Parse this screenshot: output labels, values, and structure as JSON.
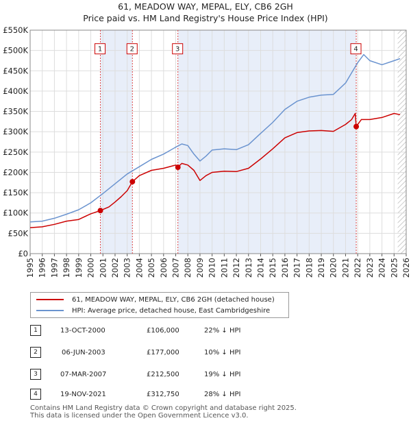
{
  "title": "61, MEADOW WAY, MEPAL, ELY, CB6 2GH",
  "subtitle": "Price paid vs. HM Land Registry's House Price Index (HPI)",
  "colors": {
    "price": "#cc0000",
    "hpi": "#6a93cf",
    "shade": "#e8eef9",
    "grid": "#dddddd"
  },
  "chart_data": {
    "type": "line",
    "xlim": [
      1995,
      2026
    ],
    "ylim": [
      0,
      550000
    ],
    "x_ticks": [
      1995,
      1996,
      1997,
      1998,
      1999,
      2000,
      2001,
      2002,
      2003,
      2004,
      2005,
      2006,
      2007,
      2008,
      2009,
      2010,
      2011,
      2012,
      2013,
      2014,
      2015,
      2016,
      2017,
      2018,
      2019,
      2020,
      2021,
      2022,
      2023,
      2024,
      2025,
      2026
    ],
    "y_ticks": [
      0,
      50000,
      100000,
      150000,
      200000,
      250000,
      300000,
      350000,
      400000,
      450000,
      500000,
      550000
    ],
    "y_tick_labels": [
      "£0",
      "£50K",
      "£100K",
      "£150K",
      "£200K",
      "£250K",
      "£300K",
      "£350K",
      "£400K",
      "£450K",
      "£500K",
      "£550K"
    ],
    "series": [
      {
        "name": "61, MEADOW WAY, MEPAL, ELY, CB6 2GH (detached house)",
        "x": [
          1995.0,
          1996.0,
          1997.0,
          1998.0,
          1999.0,
          2000.0,
          2000.79,
          2001.5,
          2002.0,
          2002.5,
          2003.0,
          2003.43,
          2004.0,
          2005.0,
          2006.0,
          2007.0,
          2007.18,
          2007.5,
          2008.0,
          2008.5,
          2009.0,
          2009.5,
          2010.0,
          2011.0,
          2012.0,
          2013.0,
          2014.0,
          2015.0,
          2016.0,
          2017.0,
          2018.0,
          2019.0,
          2020.0,
          2021.0,
          2021.5,
          2021.8,
          2021.88,
          2022.3,
          2023.0,
          2024.0,
          2025.0,
          2025.5
        ],
        "values": [
          64000,
          66000,
          72000,
          80000,
          84000,
          98000,
          106000,
          115000,
          127000,
          140000,
          155000,
          177000,
          192000,
          205000,
          210000,
          218000,
          212500,
          222000,
          218000,
          205000,
          180000,
          192000,
          200000,
          203000,
          202000,
          210000,
          233000,
          258000,
          285000,
          298000,
          302000,
          303000,
          301000,
          318000,
          330000,
          345000,
          312750,
          330000,
          330000,
          335000,
          345000,
          342000
        ]
      },
      {
        "name": "HPI: Average price, detached house, East Cambridgeshire",
        "x": [
          1995.0,
          1996.0,
          1997.0,
          1998.0,
          1999.0,
          2000.0,
          2001.0,
          2002.0,
          2003.0,
          2004.0,
          2005.0,
          2006.0,
          2007.0,
          2007.5,
          2008.0,
          2008.5,
          2009.0,
          2009.5,
          2010.0,
          2011.0,
          2012.0,
          2013.0,
          2014.0,
          2015.0,
          2016.0,
          2017.0,
          2018.0,
          2019.0,
          2020.0,
          2021.0,
          2021.5,
          2022.0,
          2022.5,
          2023.0,
          2024.0,
          2025.0,
          2025.5
        ],
        "values": [
          78000,
          80000,
          87000,
          97000,
          108000,
          125000,
          148000,
          172000,
          196000,
          214000,
          232000,
          245000,
          262000,
          270000,
          266000,
          245000,
          228000,
          240000,
          255000,
          258000,
          256000,
          268000,
          296000,
          323000,
          355000,
          375000,
          385000,
          390000,
          392000,
          420000,
          445000,
          470000,
          490000,
          475000,
          465000,
          475000,
          480000
        ]
      }
    ],
    "shaded_ranges": [
      [
        2000.79,
        2003.43
      ],
      [
        2007.18,
        2021.88
      ]
    ],
    "hatch_from": 2025.3,
    "sales": [
      {
        "label": "1",
        "x": 2000.79,
        "value": 106000
      },
      {
        "label": "2",
        "x": 2003.43,
        "value": 177000
      },
      {
        "label": "3",
        "x": 2007.18,
        "value": 212500
      },
      {
        "label": "4",
        "x": 2021.88,
        "value": 312750
      }
    ],
    "marker_y": 505000
  },
  "legend": {
    "price_label": "61, MEADOW WAY, MEPAL, ELY, CB6 2GH (detached house)",
    "hpi_label": "HPI: Average price, detached house, East Cambridgeshire"
  },
  "sales_table": [
    {
      "num": "1",
      "date": "13-OCT-2000",
      "price": "£106,000",
      "hpi": "22% ↓ HPI"
    },
    {
      "num": "2",
      "date": "06-JUN-2003",
      "price": "£177,000",
      "hpi": "10% ↓ HPI"
    },
    {
      "num": "3",
      "date": "07-MAR-2007",
      "price": "£212,500",
      "hpi": "19% ↓ HPI"
    },
    {
      "num": "4",
      "date": "19-NOV-2021",
      "price": "£312,750",
      "hpi": "28% ↓ HPI"
    }
  ],
  "footer": {
    "line1": "Contains HM Land Registry data © Crown copyright and database right 2025.",
    "line2": "This data is licensed under the Open Government Licence v3.0."
  }
}
